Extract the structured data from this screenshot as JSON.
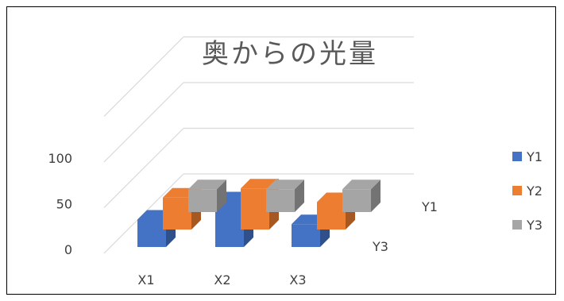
{
  "chart_data": {
    "type": "bar",
    "title": "奥からの光量",
    "categories": [
      "X1",
      "X2",
      "X3"
    ],
    "depth_categories": [
      "Y1",
      "Y3"
    ],
    "ylim": [
      0,
      150
    ],
    "yticks": [
      0,
      50,
      100
    ],
    "grid": true,
    "legend_position": "right",
    "series": [
      {
        "name": "Y1",
        "color": "#4472C4",
        "values": [
          30,
          50,
          25
        ]
      },
      {
        "name": "Y2",
        "color": "#ED7D31",
        "values": [
          35,
          45,
          30
        ]
      },
      {
        "name": "Y3",
        "color": "#A5A5A5",
        "values": [
          25,
          25,
          25
        ]
      }
    ]
  }
}
